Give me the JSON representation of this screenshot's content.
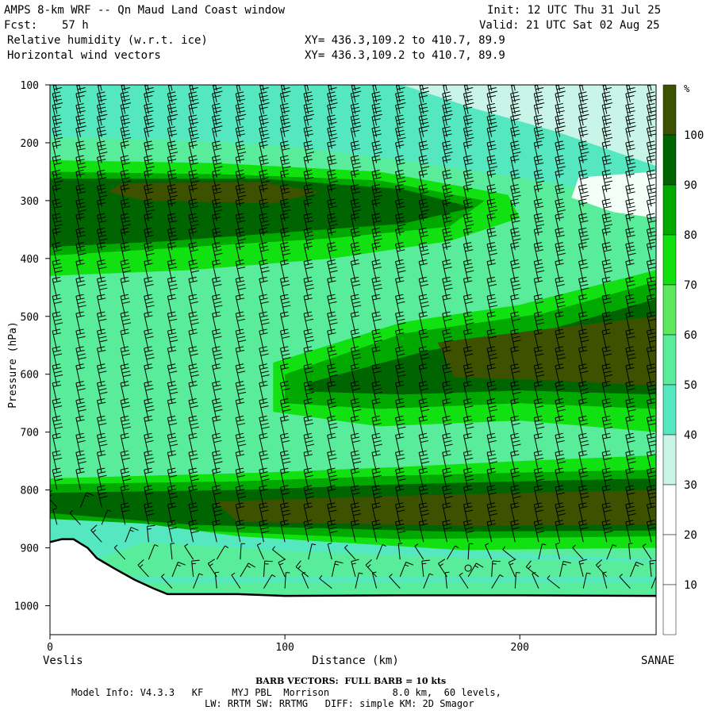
{
  "header": {
    "title": "AMPS 8-km WRF -- Qn Maud Land Coast window",
    "init": "Init: 12 UTC Thu 31 Jul 25",
    "fcst_label": "Fcst:",
    "fcst_value": "57 h",
    "valid": "Valid: 21 UTC Sat 02 Aug 25",
    "field1": "Relative humidity (w.r.t. ice)",
    "field2": "Horizontal wind vectors",
    "xy1": "XY= 436.3,109.2 to 410.7, 89.9",
    "xy2": "XY= 436.3,109.2 to 410.7, 89.9"
  },
  "footer": {
    "left_end": "Veslis",
    "right_end": "SANAE",
    "barb_note": "BARB VECTORS:  FULL BARB = 10 kts",
    "model_info": "Model Info: V4.3.3   KF     MYJ PBL  Morrison           8.0 km,  60 levels,",
    "physics": "LW: RRTM SW: RRTMG   DIFF: simple KM: 2D Smagor"
  },
  "chart_data": {
    "type": "cross-section-contour",
    "xlabel": "Distance (km)",
    "ylabel": "Pressure (hPa)",
    "xlim": [
      0,
      258
    ],
    "ylim": [
      1050,
      100
    ],
    "x_ticks": [
      0,
      100,
      200
    ],
    "y_ticks": [
      100,
      200,
      300,
      400,
      500,
      600,
      700,
      800,
      900,
      1000
    ],
    "colorbar": {
      "unit": "%",
      "levels": [
        10,
        20,
        30,
        40,
        50,
        60,
        70,
        80,
        90,
        100
      ],
      "colors": [
        "#ffffff",
        "#ffffff",
        "#ffffff",
        "#c8f5e8",
        "#55e8c0",
        "#59ec9a",
        "#5de85d",
        "#11e011",
        "#00a800",
        "#006400",
        "#3d5200"
      ]
    },
    "fill_colors": {
      "rh30_40": "#c8f5e8",
      "rh40_50": "#55e8c0",
      "rh50_60": "#59ec9a",
      "rh60_70": "#5de85d",
      "rh70_80": "#11e011",
      "rh80_90": "#00a800",
      "rh90_100": "#006400",
      "rh100plus": "#3d5200",
      "terrain_line": "#000000"
    },
    "terrain": {
      "x": [
        0,
        5,
        10,
        16,
        20,
        28,
        36,
        44,
        50,
        60,
        80,
        100,
        150,
        200,
        258
      ],
      "p": [
        890,
        885,
        885,
        900,
        918,
        937,
        955,
        970,
        980,
        980,
        980,
        983,
        982,
        982,
        983
      ]
    },
    "barb_columns_x": [
      3,
      13,
      22,
      32,
      42,
      52,
      61,
      71,
      81,
      91,
      100,
      110,
      120,
      130,
      139,
      149,
      159,
      169,
      178,
      188,
      198,
      208,
      217,
      227,
      237,
      247,
      256
    ],
    "barb_levels_hPa": [
      110,
      130,
      150,
      170,
      190,
      210,
      235,
      260,
      285,
      310,
      335,
      360,
      385,
      410,
      440,
      470,
      500,
      530,
      560,
      590,
      620,
      650,
      680,
      710,
      740,
      770,
      800,
      830,
      860,
      890,
      920,
      950,
      970
    ]
  }
}
